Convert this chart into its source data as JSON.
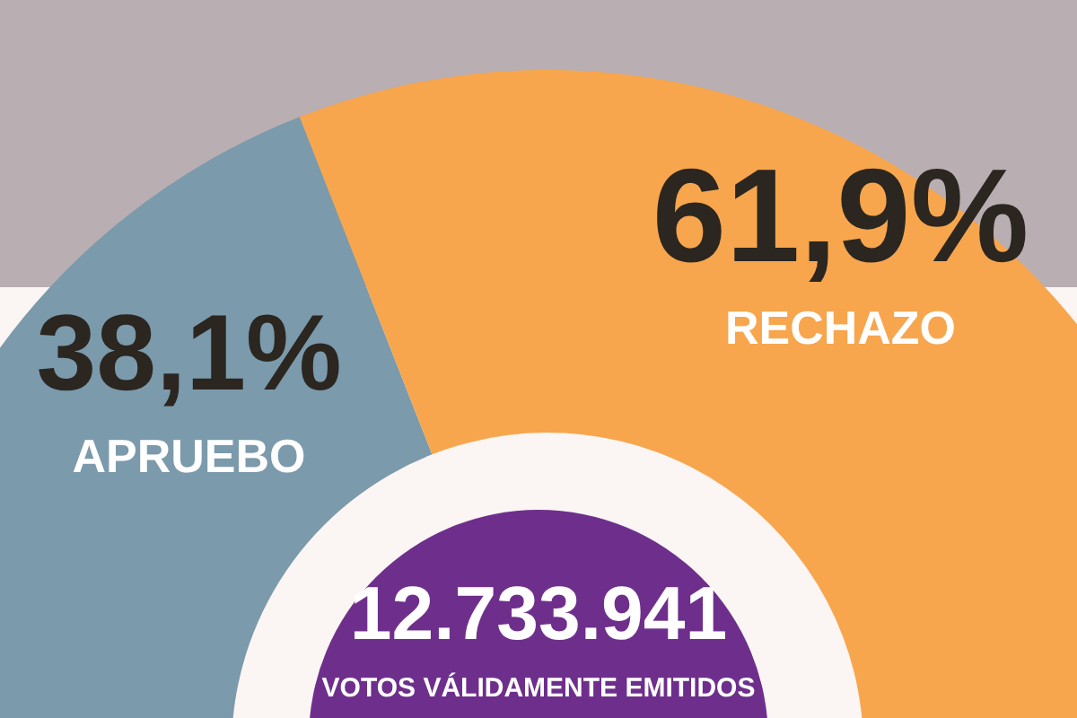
{
  "chart_data": {
    "type": "donut",
    "categories": [
      "APRUEBO",
      "RECHAZO"
    ],
    "values": [
      38.1,
      61.9
    ],
    "colors": [
      "#7b9aab",
      "#f7a64d"
    ],
    "value_labels": [
      "38,1%",
      "61,9%"
    ],
    "annotations": [
      "12.733.941",
      "VOTOS VÁLIDAMENTE EMITIDOS"
    ]
  }
}
